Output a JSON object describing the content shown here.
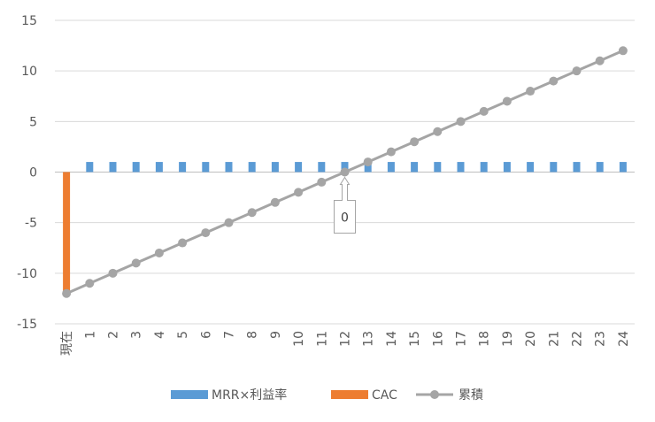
{
  "chart_data": {
    "type": "bar",
    "categories": [
      "現在",
      "1",
      "2",
      "3",
      "4",
      "5",
      "6",
      "7",
      "8",
      "9",
      "10",
      "11",
      "12",
      "13",
      "14",
      "15",
      "16",
      "17",
      "18",
      "19",
      "20",
      "21",
      "22",
      "23",
      "24"
    ],
    "series": [
      {
        "name": "MRR×利益率",
        "kind": "bar-dash",
        "color": "#5B9BD5",
        "values": [
          null,
          1,
          1,
          1,
          1,
          1,
          1,
          1,
          1,
          1,
          1,
          1,
          1,
          1,
          1,
          1,
          1,
          1,
          1,
          1,
          1,
          1,
          1,
          1,
          1
        ]
      },
      {
        "name": "CAC",
        "kind": "bar",
        "color": "#ED7D31",
        "values": [
          -12,
          null,
          null,
          null,
          null,
          null,
          null,
          null,
          null,
          null,
          null,
          null,
          null,
          null,
          null,
          null,
          null,
          null,
          null,
          null,
          null,
          null,
          null,
          null,
          null
        ]
      },
      {
        "name": "累積",
        "kind": "line",
        "color": "#A5A5A5",
        "values": [
          -12,
          -11,
          -10,
          -9,
          -8,
          -7,
          -6,
          -5,
          -4,
          -3,
          -2,
          -1,
          0,
          1,
          2,
          3,
          4,
          5,
          6,
          7,
          8,
          9,
          10,
          11,
          12
        ]
      }
    ],
    "ylim": [
      -15,
      15
    ],
    "yticks": [
      -15,
      -10,
      -5,
      0,
      5,
      10,
      15
    ],
    "grid": true,
    "legend": "bottom",
    "annotation": {
      "category": "12",
      "text": "0"
    }
  }
}
